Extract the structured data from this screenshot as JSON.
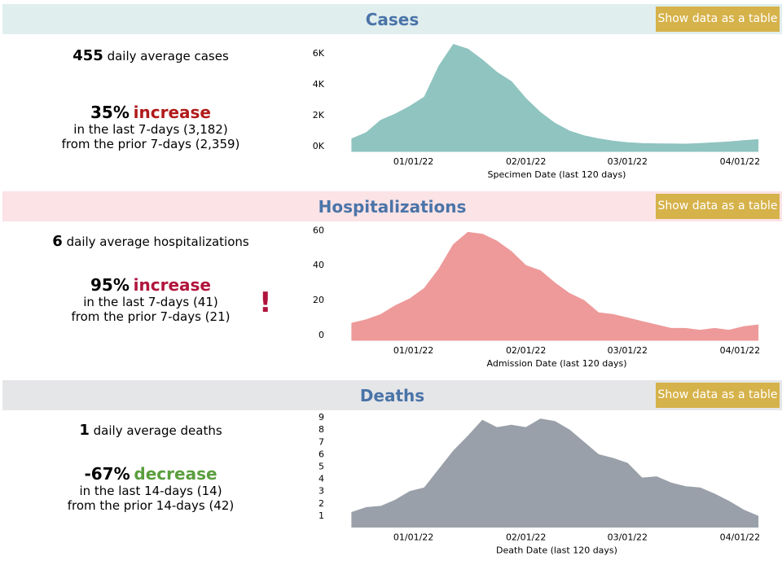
{
  "sections": [
    {
      "title": "Cases",
      "button": "Show data as a table",
      "summary": {
        "count": "455",
        "count_text": "daily average cases",
        "change": "35%",
        "direction": "increase",
        "color": "#b11a1a",
        "period": "in the last 7-days (3,182)",
        "prior": "from the prior 7-days (2,359)"
      }
    },
    {
      "title": "Hospitalizations",
      "button": "Show data as a table",
      "summary": {
        "count": "6",
        "count_text": "daily average hospitalizations",
        "change": "95%",
        "direction": "increase",
        "color": "#b0143c",
        "period": "in the last 7-days (41)",
        "prior": "from the prior 7-days (21)",
        "alert": "!"
      }
    },
    {
      "title": "Deaths",
      "button": "Show data as a table",
      "summary": {
        "count": "1",
        "count_text": "daily average deaths",
        "change": "-67%",
        "direction": "decrease",
        "color": "#5a9e3e",
        "period": "in the last 14-days (14)",
        "prior": "from the prior 14-days (42)"
      }
    }
  ],
  "chart_data": [
    {
      "type": "area",
      "x_label": "Specimen Date (last 120 days)",
      "color": "#8fc4c0",
      "x": [
        "12/15/21",
        "12/19/21",
        "12/23/21",
        "12/27/21",
        "12/31/21",
        "01/04/22",
        "01/08/22",
        "01/12/22",
        "01/16/22",
        "01/20/22",
        "01/24/22",
        "01/28/22",
        "02/01/22",
        "02/05/22",
        "02/09/22",
        "02/13/22",
        "02/17/22",
        "02/21/22",
        "02/25/22",
        "03/01/22",
        "03/05/22",
        "03/09/22",
        "03/13/22",
        "03/17/22",
        "03/21/22",
        "03/25/22",
        "03/29/22",
        "04/02/22",
        "04/06/22"
      ],
      "values": [
        500,
        900,
        1700,
        2100,
        2600,
        3200,
        5200,
        6600,
        6300,
        5600,
        4800,
        4200,
        3100,
        2200,
        1500,
        1000,
        700,
        500,
        350,
        250,
        200,
        180,
        170,
        160,
        200,
        250,
        300,
        380,
        455
      ],
      "xlim": [
        "12/13/21",
        "04/09/22"
      ],
      "xticks": [
        "01/01/22",
        "02/01/22",
        "03/01/22",
        "04/01/22"
      ],
      "ylim": [
        0,
        7000
      ],
      "yticks": [
        {
          "value": 0,
          "label": "0K"
        },
        {
          "value": 2000,
          "label": "2K"
        },
        {
          "value": 4000,
          "label": "4K"
        },
        {
          "value": 6000,
          "label": "6K"
        }
      ]
    },
    {
      "type": "area",
      "x_label": "Admission Date (last 120 days)",
      "color": "#ee9a9a",
      "x": [
        "12/15/21",
        "12/19/21",
        "12/23/21",
        "12/27/21",
        "12/31/21",
        "01/04/22",
        "01/08/22",
        "01/12/22",
        "01/16/22",
        "01/20/22",
        "01/24/22",
        "01/28/22",
        "02/01/22",
        "02/05/22",
        "02/09/22",
        "02/13/22",
        "02/17/22",
        "02/21/22",
        "02/25/22",
        "03/01/22",
        "03/05/22",
        "03/09/22",
        "03/13/22",
        "03/17/22",
        "03/21/22",
        "03/25/22",
        "03/29/22",
        "04/02/22",
        "04/06/22"
      ],
      "values": [
        7,
        9,
        12,
        17,
        21,
        27,
        38,
        52,
        59,
        58,
        54,
        48,
        40,
        37,
        30,
        24,
        20,
        13,
        12,
        10,
        8,
        6,
        4,
        4,
        3,
        4,
        3,
        5,
        6
      ],
      "xlim": [
        "12/13/21",
        "04/09/22"
      ],
      "xticks": [
        "01/01/22",
        "02/01/22",
        "03/01/22",
        "04/01/22"
      ],
      "ylim": [
        0,
        62
      ],
      "yticks": [
        0,
        20,
        40,
        60
      ]
    },
    {
      "type": "area",
      "x_label": "Death Date (last 120 days)",
      "color": "#9aa0a9",
      "x": [
        "12/15/21",
        "12/19/21",
        "12/23/21",
        "12/27/21",
        "12/31/21",
        "01/04/22",
        "01/08/22",
        "01/12/22",
        "01/16/22",
        "01/20/22",
        "01/24/22",
        "01/28/22",
        "02/01/22",
        "02/05/22",
        "02/09/22",
        "02/13/22",
        "02/17/22",
        "02/21/22",
        "02/25/22",
        "03/01/22",
        "03/05/22",
        "03/09/22",
        "03/13/22",
        "03/17/22",
        "03/21/22",
        "03/25/22",
        "03/29/22",
        "04/02/22",
        "04/06/22"
      ],
      "values": [
        1.3,
        1.7,
        1.8,
        2.3,
        3.0,
        3.3,
        4.8,
        6.3,
        7.5,
        8.8,
        8.2,
        8.4,
        8.2,
        8.9,
        8.7,
        8.0,
        7.0,
        6.0,
        5.7,
        5.3,
        4.1,
        4.2,
        3.7,
        3.4,
        3.3,
        2.8,
        2.2,
        1.5,
        1.0
      ],
      "xlim": [
        "12/13/21",
        "04/09/22"
      ],
      "xticks": [
        "01/01/22",
        "02/01/22",
        "03/01/22",
        "04/01/22"
      ],
      "ylim": [
        0.5,
        9.3
      ],
      "yticks": [
        1,
        2,
        3,
        4,
        5,
        6,
        7,
        8,
        9
      ]
    }
  ]
}
